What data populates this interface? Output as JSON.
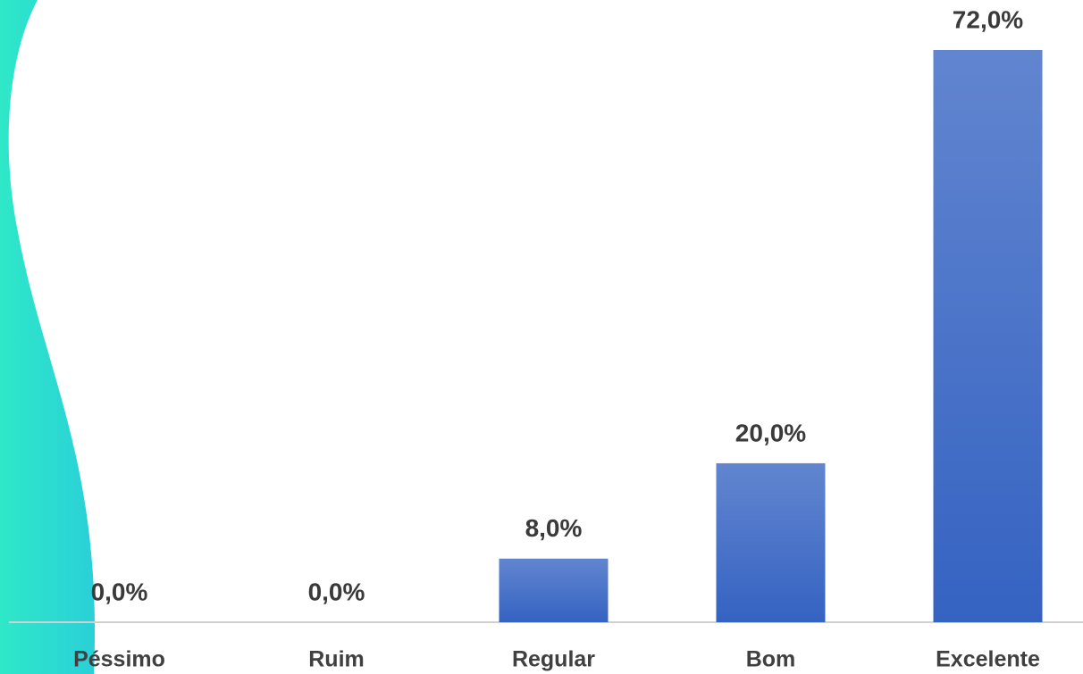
{
  "chart_data": {
    "type": "bar",
    "categories": [
      "Péssimo",
      "Ruim",
      "Regular",
      "Bom",
      "Excelente"
    ],
    "values": [
      0,
      0,
      8,
      20,
      72
    ],
    "value_labels": [
      "0,0%",
      "0,0%",
      "8,0%",
      "20,0%",
      "72,0%"
    ],
    "color": "#3563c2"
  }
}
